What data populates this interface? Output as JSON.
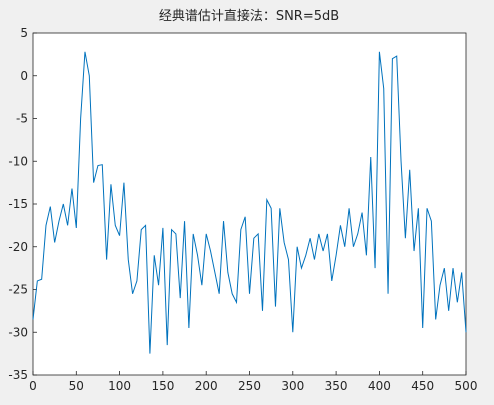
{
  "chart_data": {
    "type": "line",
    "title": "经典谱估计直接法：SNR=5dB",
    "x": [
      0,
      5,
      10,
      15,
      20,
      25,
      30,
      35,
      40,
      45,
      50,
      55,
      60,
      65,
      70,
      75,
      80,
      85,
      90,
      95,
      100,
      105,
      110,
      115,
      120,
      125,
      130,
      135,
      140,
      145,
      150,
      155,
      160,
      165,
      170,
      175,
      180,
      185,
      190,
      195,
      200,
      205,
      210,
      215,
      220,
      225,
      230,
      235,
      240,
      245,
      250,
      255,
      260,
      265,
      270,
      275,
      280,
      285,
      290,
      295,
      300,
      305,
      310,
      315,
      320,
      325,
      330,
      335,
      340,
      345,
      350,
      355,
      360,
      365,
      370,
      375,
      380,
      385,
      390,
      395,
      400,
      405,
      410,
      415,
      420,
      425,
      430,
      435,
      440,
      445,
      450,
      455,
      460,
      465,
      470,
      475,
      480,
      485,
      490,
      495,
      500
    ],
    "series": [
      {
        "color": "#0072bd",
        "values": [
          -28.5,
          -24,
          -23.8,
          -17.5,
          -15.3,
          -19.5,
          -17,
          -15,
          -17.5,
          -13.2,
          -17.8,
          -5,
          2.8,
          0,
          -12.5,
          -10.5,
          -10.4,
          -21.5,
          -12.7,
          -17.5,
          -18.7,
          -12.5,
          -21.5,
          -25.5,
          -24,
          -18,
          -17.5,
          -32.5,
          -21,
          -24.5,
          -17.8,
          -31.5,
          -18,
          -18.5,
          -26,
          -17,
          -29.5,
          -18.5,
          -21,
          -24.5,
          -18.5,
          -20.5,
          -23,
          -25.5,
          -17,
          -23,
          -25.5,
          -26.5,
          -18,
          -16.5,
          -25.5,
          -19,
          -18.5,
          -27.5,
          -14.5,
          -15.5,
          -27,
          -15.5,
          -19.5,
          -21.5,
          -30,
          -20,
          -22.5,
          -21,
          -19,
          -21.5,
          -18.5,
          -20.5,
          -18.5,
          -24,
          -21,
          -17.5,
          -20,
          -15.5,
          -20,
          -18.5,
          -16,
          -21,
          -9.5,
          -22.5,
          2.8,
          -1.5,
          -25.5,
          2,
          2.3,
          -10,
          -19,
          -11,
          -20.5,
          -15.5,
          -29.5,
          -15.5,
          -17,
          -28.5,
          -24.5,
          -22.5,
          -27.5,
          -22.5,
          -26.5,
          -23,
          -30
        ]
      }
    ],
    "xlim": [
      0,
      500
    ],
    "xticks": [
      0,
      50,
      100,
      150,
      200,
      250,
      300,
      350,
      400,
      450,
      500
    ],
    "ylim": [
      -35,
      5
    ],
    "yticks": [
      -35,
      -30,
      -25,
      -20,
      -15,
      -10,
      -5,
      0,
      5
    ]
  }
}
